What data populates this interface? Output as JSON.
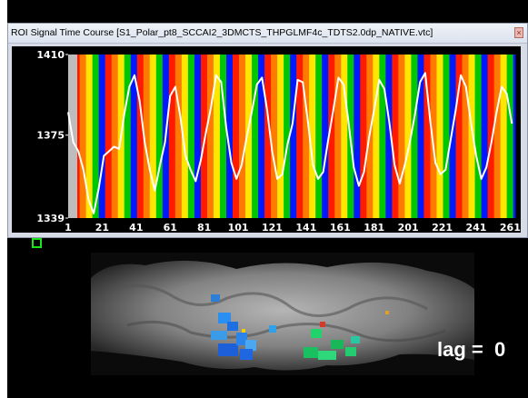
{
  "window": {
    "title": "ROI Signal Time Course  [S1_Polar_pt8_SCCAI2_3DMCTS_THPGLMF4c_TDTS2.0dp_NATIVE.vtc]",
    "close_glyph": "×"
  },
  "overlay": {
    "lag_label": "lag =  0"
  },
  "chart_data": {
    "type": "line",
    "title": "",
    "xlabel": "",
    "ylabel": "",
    "ylim": [
      1339,
      1410
    ],
    "xlim": [
      1,
      264
    ],
    "y_ticks": [
      "1410",
      "1375",
      "1339"
    ],
    "x_ticks": [
      1,
      21,
      41,
      61,
      81,
      101,
      121,
      141,
      161,
      181,
      201,
      221,
      241,
      261
    ],
    "background_stimulus_colors": [
      "#ff1a00",
      "#ff7a00",
      "#ffe600",
      "#00c800",
      "#0019ff",
      "#c8c8c8"
    ],
    "series": [
      {
        "color": "#ffffff",
        "x": [
          1,
          4,
          7,
          10,
          13,
          16,
          19,
          22,
          25,
          28,
          31,
          34,
          37,
          40,
          43,
          46,
          49,
          52,
          55,
          58,
          61,
          64,
          67,
          70,
          73,
          76,
          79,
          82,
          85,
          88,
          91,
          94,
          97,
          100,
          103,
          106,
          109,
          112,
          115,
          118,
          121,
          124,
          127,
          130,
          133,
          136,
          139,
          142,
          145,
          148,
          151,
          154,
          157,
          160,
          163,
          166,
          169,
          172,
          175,
          178,
          181,
          184,
          187,
          190,
          193,
          196,
          199,
          202,
          205,
          208,
          211,
          214,
          217,
          220,
          223,
          226,
          229,
          232,
          235,
          238,
          241,
          244,
          247,
          250,
          253,
          256,
          259,
          262
        ],
        "y": [
          1385,
          1372,
          1368,
          1360,
          1347,
          1341,
          1352,
          1366,
          1368,
          1370,
          1369,
          1384,
          1396,
          1401,
          1390,
          1372,
          1360,
          1351,
          1362,
          1372,
          1392,
          1396,
          1383,
          1366,
          1360,
          1355,
          1364,
          1376,
          1387,
          1401,
          1398,
          1378,
          1363,
          1356,
          1362,
          1374,
          1385,
          1397,
          1400,
          1386,
          1368,
          1356,
          1358,
          1371,
          1380,
          1399,
          1398,
          1381,
          1362,
          1356,
          1359,
          1373,
          1386,
          1400,
          1397,
          1380,
          1361,
          1353,
          1359,
          1374,
          1386,
          1399,
          1395,
          1380,
          1362,
          1354,
          1362,
          1372,
          1384,
          1398,
          1402,
          1381,
          1363,
          1358,
          1360,
          1373,
          1386,
          1401,
          1396,
          1380,
          1366,
          1356,
          1361,
          1372,
          1385,
          1396,
          1393,
          1380
        ]
      }
    ]
  }
}
